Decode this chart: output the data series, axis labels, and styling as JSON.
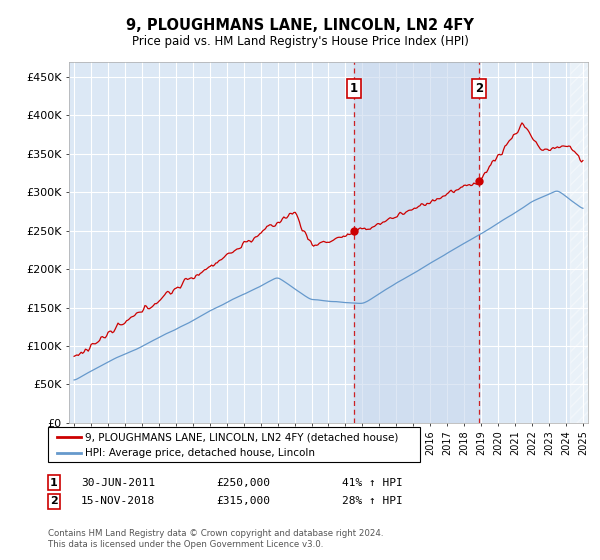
{
  "title": "9, PLOUGHMANS LANE, LINCOLN, LN2 4FY",
  "subtitle": "Price paid vs. HM Land Registry's House Price Index (HPI)",
  "ylabel_ticks": [
    "£0",
    "£50K",
    "£100K",
    "£150K",
    "£200K",
    "£250K",
    "£300K",
    "£350K",
    "£400K",
    "£450K"
  ],
  "ytick_vals": [
    0,
    50000,
    100000,
    150000,
    200000,
    250000,
    300000,
    350000,
    400000,
    450000
  ],
  "ylim": [
    0,
    470000
  ],
  "xlim_start": 1994.7,
  "xlim_end": 2025.3,
  "sale1_date": 2011.5,
  "sale1_price": 250000,
  "sale1_label": "30-JUN-2011",
  "sale1_amount": "£250,000",
  "sale1_pct": "41% ↑ HPI",
  "sale2_date": 2018.88,
  "sale2_price": 315000,
  "sale2_label": "15-NOV-2018",
  "sale2_amount": "£315,000",
  "sale2_pct": "28% ↑ HPI",
  "line_color_property": "#cc0000",
  "line_color_hpi": "#6699cc",
  "bg_color": "#dce8f5",
  "shade_color": "#dce8f5",
  "grid_color": "#ffffff",
  "legend_label_property": "9, PLOUGHMANS LANE, LINCOLN, LN2 4FY (detached house)",
  "legend_label_hpi": "HPI: Average price, detached house, Lincoln",
  "footer1": "Contains HM Land Registry data © Crown copyright and database right 2024.",
  "footer2": "This data is licensed under the Open Government Licence v3.0.",
  "hatch_start": 2024.25
}
